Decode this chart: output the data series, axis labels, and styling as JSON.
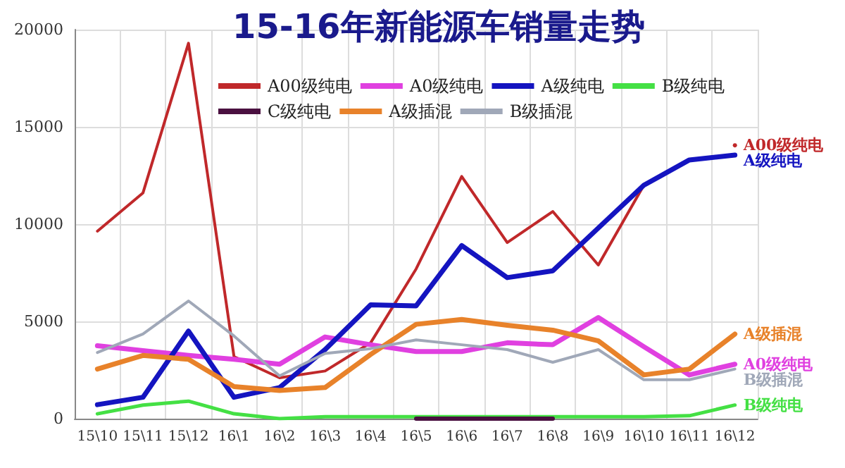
{
  "chart_data": {
    "type": "line",
    "title": "15-16年新能源车销量走势",
    "categories": [
      "15\\10",
      "15\\11",
      "15\\12",
      "16\\1",
      "16\\2",
      "16\\3",
      "16\\4",
      "16\\5",
      "16\\6",
      "16\\7",
      "16\\8",
      "16\\9",
      "16\\10",
      "16\\11",
      "16\\12"
    ],
    "series": [
      {
        "name": "A00级纯电",
        "color": "#c0282a",
        "values": [
          9640,
          11600,
          19300,
          3190,
          2100,
          2450,
          3900,
          7700,
          12450,
          9050,
          10650,
          7900,
          12000,
          null,
          14050
        ]
      },
      {
        "name": "A0级纯电",
        "color": "#e040e0",
        "values": [
          3750,
          3500,
          3250,
          3050,
          2800,
          4200,
          3800,
          3450,
          3450,
          3900,
          3800,
          5200,
          3700,
          2250,
          2800
        ]
      },
      {
        "name": "A级纯电",
        "color": "#1414c0",
        "values": [
          720,
          1100,
          4500,
          1100,
          1600,
          3550,
          5850,
          5800,
          8900,
          7250,
          7600,
          9800,
          12000,
          13300,
          13550
        ]
      },
      {
        "name": "B级纯电",
        "color": "#44e044",
        "values": [
          250,
          700,
          900,
          250,
          0,
          100,
          100,
          100,
          100,
          100,
          100,
          100,
          100,
          150,
          700
        ]
      },
      {
        "name": "C级纯电",
        "color": "#4a1040",
        "values": [
          null,
          null,
          null,
          null,
          null,
          null,
          null,
          0,
          0,
          0,
          0,
          null,
          null,
          null,
          null
        ]
      },
      {
        "name": "A级插混",
        "color": "#e8822a",
        "values": [
          2550,
          3250,
          3050,
          1650,
          1450,
          1600,
          3300,
          4850,
          5100,
          4800,
          4550,
          4000,
          2250,
          2550,
          4350
        ]
      },
      {
        "name": "B级插混",
        "color": "#a0a8b8",
        "values": [
          3400,
          4350,
          6050,
          4250,
          2200,
          3350,
          3600,
          4050,
          3800,
          3550,
          2900,
          3550,
          2000,
          2000,
          2550
        ]
      }
    ],
    "ylim": [
      0,
      20000
    ],
    "yticks": [
      0,
      5000,
      10000,
      15000,
      20000
    ],
    "grid": true,
    "legend": "top",
    "marker": "none",
    "line_style": "solid"
  }
}
